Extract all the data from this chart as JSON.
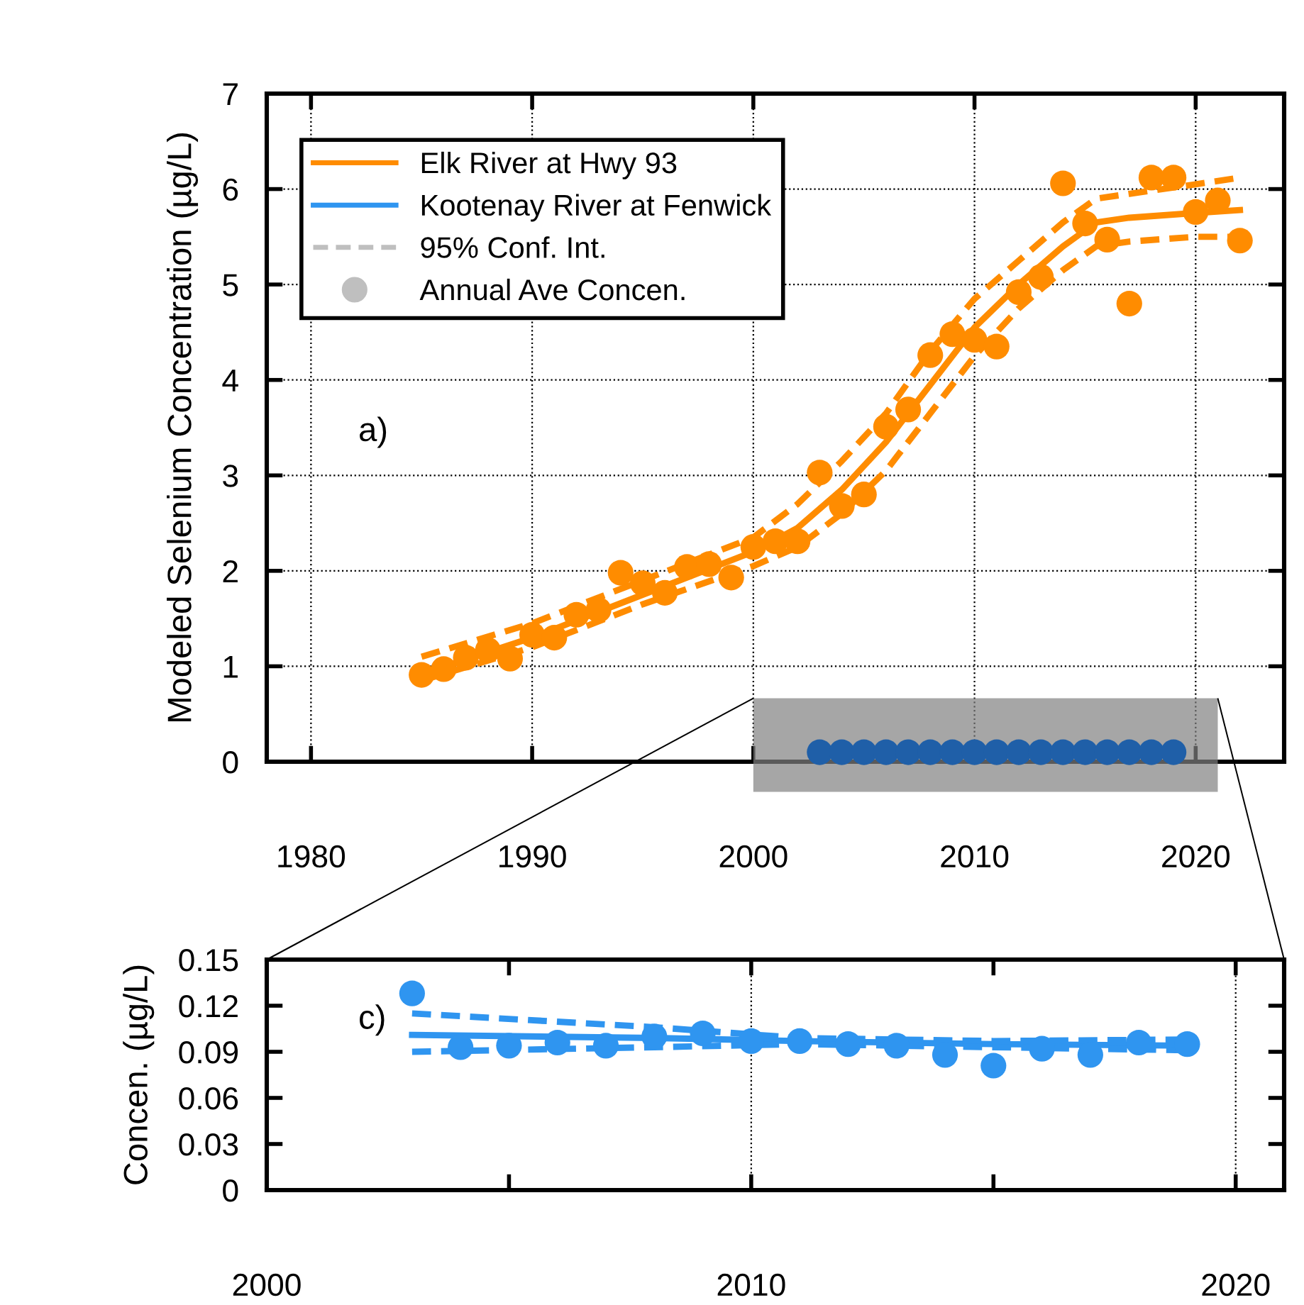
{
  "chart_data": [
    {
      "type": "line",
      "ylabel": "Modeled Selenium Concentration (µg/L)",
      "xlim": [
        1978,
        2024
      ],
      "xticks": [
        1980,
        1990,
        2000,
        2010,
        2020
      ],
      "ylim": [
        0,
        7
      ],
      "yticks": [
        0,
        1,
        2,
        3,
        4,
        5,
        6,
        7
      ],
      "grid": true,
      "legend": "top left",
      "line_style": "solid",
      "marker": "none",
      "annotations": [
        "a)"
      ],
      "series": [
        {
          "name": "Elk River at Hwy 93",
          "color": "#ff8c00",
          "x": [
            1985,
            1990,
            1995,
            2000,
            2002,
            2004,
            2006,
            2008,
            2010,
            2012,
            2014,
            2015.5,
            2017,
            2020,
            2022
          ],
          "values": [
            0.92,
            1.3,
            1.75,
            2.2,
            2.45,
            2.85,
            3.35,
            3.95,
            4.55,
            5.0,
            5.4,
            5.65,
            5.7,
            5.75,
            5.78
          ]
        },
        {
          "line_style": "dashed",
          "color": "#ff8c00",
          "x": [
            1985,
            1990,
            1995,
            2000,
            2002,
            2004,
            2006,
            2008,
            2010,
            2012,
            2014,
            2015.5,
            2017,
            2020,
            2022
          ],
          "values": [
            1.1,
            1.45,
            1.9,
            2.35,
            2.7,
            3.15,
            3.65,
            4.3,
            4.85,
            5.25,
            5.65,
            5.9,
            5.95,
            6.05,
            6.12
          ]
        },
        {
          "line_style": "dashed",
          "color": "#ff8c00",
          "x": [
            1985,
            1990,
            1995,
            2000,
            2002,
            2004,
            2006,
            2008,
            2010,
            2012,
            2014,
            2015.5,
            2017,
            2020,
            2022
          ],
          "values": [
            0.85,
            1.2,
            1.65,
            2.05,
            2.25,
            2.6,
            3.05,
            3.65,
            4.25,
            4.75,
            5.15,
            5.4,
            5.45,
            5.5,
            5.5
          ]
        },
        {
          "type": "scatter",
          "marker": "circle",
          "color": "#ff8c00",
          "x": [
            1985,
            1986,
            1987,
            1988,
            1989,
            1990,
            1991,
            1992,
            1993,
            1994,
            1995,
            1996,
            1997,
            1998,
            1999,
            2000,
            2001,
            2002,
            2003,
            2004,
            2005,
            2006,
            2007,
            2008,
            2009,
            2010,
            2011,
            2012,
            2013,
            2014,
            2015,
            2016,
            2017,
            2018,
            2019,
            2020,
            2021,
            2022
          ],
          "values": [
            0.91,
            0.97,
            1.09,
            1.17,
            1.08,
            1.33,
            1.3,
            1.54,
            1.59,
            1.98,
            1.87,
            1.77,
            2.04,
            2.07,
            1.93,
            2.25,
            2.31,
            2.31,
            3.03,
            2.68,
            2.8,
            3.51,
            3.69,
            4.26,
            4.48,
            4.42,
            4.35,
            4.92,
            5.08,
            6.06,
            5.64,
            5.47,
            4.8,
            6.12,
            6.12,
            5.76,
            5.88,
            5.46
          ]
        },
        {
          "type": "scatter",
          "marker": "circle",
          "color": "#1f5fa8",
          "x": [
            2003,
            2004,
            2005,
            2006,
            2007,
            2008,
            2009,
            2010,
            2011,
            2012,
            2013,
            2014,
            2015,
            2016,
            2017,
            2018,
            2019
          ],
          "values": [
            0.1,
            0.1,
            0.1,
            0.1,
            0.1,
            0.1,
            0.1,
            0.1,
            0.1,
            0.1,
            0.1,
            0.1,
            0.1,
            0.1,
            0.1,
            0.1,
            0.1
          ]
        }
      ]
    },
    {
      "type": "line",
      "ylabel": "Concen. (µg/L)",
      "xlim": [
        2000,
        2021
      ],
      "xticks": [
        2000,
        {
          "value": 2005,
          "label": null
        },
        2010,
        {
          "value": 2015,
          "label": null
        },
        2020
      ],
      "ylim": [
        0,
        0.15
      ],
      "yticks": [
        0,
        0.03,
        0.06,
        0.09,
        0.12,
        0.15
      ],
      "grid": "x",
      "line_style": "solid",
      "marker": "none",
      "annotations": [
        "c)"
      ],
      "series": [
        {
          "name": "Kootenay River at Fenwick",
          "color": "#2f95f0",
          "x": [
            2003,
            2008,
            2011,
            2015,
            2019
          ],
          "values": [
            0.101,
            0.099,
            0.097,
            0.095,
            0.094
          ]
        },
        {
          "line_style": "dashed",
          "color": "#2f95f0",
          "x": [
            2003,
            2008,
            2011,
            2015,
            2019
          ],
          "values": [
            0.115,
            0.106,
            0.099,
            0.097,
            0.098
          ]
        },
        {
          "line_style": "dashed",
          "color": "#2f95f0",
          "x": [
            2003,
            2008,
            2011,
            2015,
            2019
          ],
          "values": [
            0.09,
            0.093,
            0.095,
            0.093,
            0.091
          ]
        },
        {
          "type": "scatter",
          "marker": "circle",
          "color": "#2f95f0",
          "x": [
            2003,
            2004,
            2005,
            2006,
            2007,
            2008,
            2009,
            2010,
            2011,
            2012,
            2013,
            2014,
            2015,
            2016,
            2017,
            2018,
            2019
          ],
          "values": [
            0.128,
            0.093,
            0.094,
            0.096,
            0.094,
            0.1,
            0.102,
            0.097,
            0.097,
            0.095,
            0.094,
            0.088,
            0.081,
            0.092,
            0.088,
            0.096,
            0.095
          ]
        },
        {
          "name": "95% Conf. Int.",
          "line_style": "dashed",
          "color": "#bfbfbf"
        },
        {
          "name": "Annual Ave Concen.",
          "type": "scatter",
          "marker": "circle",
          "color": "#bfbfbf"
        }
      ]
    }
  ]
}
